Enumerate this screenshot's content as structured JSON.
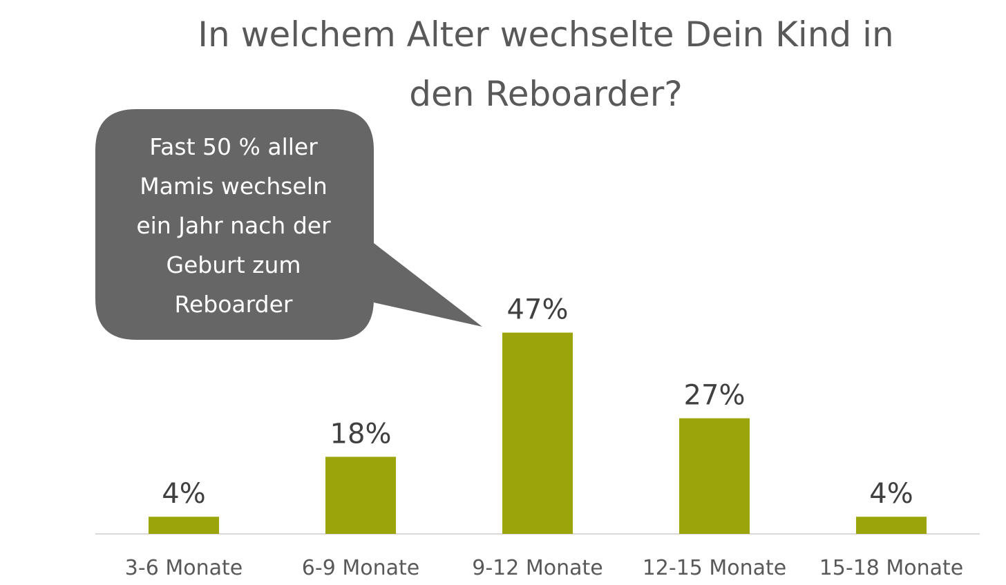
{
  "chart_data": {
    "type": "bar",
    "title_lines": [
      "In welchem Alter wechselte Dein Kind in",
      "den Reboarder?"
    ],
    "categories": [
      "3-6 Monate",
      "6-9 Monate",
      "9-12 Monate",
      "12-15 Monate",
      "15-18 Monate"
    ],
    "values": [
      4,
      18,
      47,
      27,
      4
    ],
    "data_labels": [
      "4%",
      "18%",
      "47%",
      "27%",
      "4%"
    ],
    "unit": "%",
    "ylim": [
      0,
      100
    ],
    "grid": false,
    "legend": "none",
    "bar_color": "#9ba40a",
    "axis_color": "#d9d9d9",
    "annotation": {
      "lines": [
        "Fast 50 % aller",
        "Mamis wechseln",
        "ein Jahr nach der",
        "Geburt zum",
        "Reboarder"
      ],
      "points_to_category": "9-12 Monate",
      "fill_color": "#666666",
      "text_color": "#ffffff"
    }
  }
}
